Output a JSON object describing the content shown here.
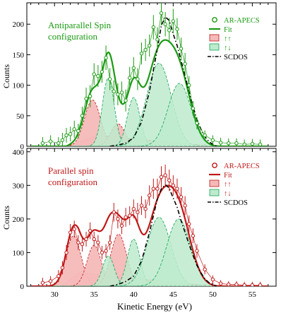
{
  "chart_data": [
    {
      "type": "line",
      "panel": "top",
      "title": "Antiparallel Spin configuration",
      "title_lines": [
        "Antiparallel Spin",
        "configuration"
      ],
      "ylabel": "Counts",
      "xlabel": "Kinetic Energy (eV)",
      "xlim": [
        26.5,
        58
      ],
      "ylim": [
        0,
        235
      ],
      "yticks": [
        0,
        50,
        100,
        150,
        200
      ],
      "accent_color": "#1a9a12",
      "legend": {
        "placement": "top-right",
        "entries": [
          {
            "label": "AR-APECS",
            "kind": "open-circle"
          },
          {
            "label": "Fit",
            "kind": "line"
          },
          {
            "label": "↑↑",
            "kind": "fill-red"
          },
          {
            "label": "↑↓",
            "kind": "fill-green"
          },
          {
            "label": "SCDOS",
            "kind": "dashdot"
          }
        ]
      },
      "series": [
        {
          "name": "AR-APECS",
          "role": "data",
          "x": [
            28.5,
            29.5,
            30.5,
            31,
            31.5,
            32,
            32.5,
            33,
            33.5,
            34,
            34.5,
            35,
            35.5,
            36,
            36.5,
            37,
            37.5,
            38,
            38.5,
            39,
            39.5,
            40,
            40.5,
            41,
            41.5,
            42,
            42.5,
            43,
            43.5,
            44,
            44.5,
            45,
            45.5,
            46,
            46.5,
            47,
            47.5,
            48,
            49,
            50,
            51,
            52,
            53,
            54,
            55,
            56
          ],
          "y": [
            5,
            8,
            5,
            10,
            18,
            20,
            28,
            25,
            50,
            78,
            82,
            118,
            115,
            122,
            145,
            110,
            90,
            85,
            88,
            75,
            112,
            128,
            110,
            152,
            158,
            165,
            195,
            175,
            218,
            200,
            190,
            205,
            192,
            160,
            135,
            100,
            62,
            38,
            18,
            10,
            6,
            5,
            5,
            3,
            4,
            3
          ],
          "err": [
            10,
            10,
            10,
            12,
            12,
            12,
            14,
            12,
            15,
            18,
            18,
            18,
            18,
            18,
            20,
            18,
            18,
            18,
            18,
            18,
            18,
            18,
            18,
            18,
            18,
            18,
            20,
            20,
            20,
            20,
            20,
            20,
            18,
            18,
            18,
            15,
            12,
            10,
            8,
            8,
            8,
            8,
            8,
            8,
            8,
            8
          ]
        },
        {
          "name": "Fit",
          "role": "fit",
          "x": [],
          "y": []
        },
        {
          "name": "↑↑",
          "role": "component-red",
          "peaks": [
            {
              "center": 34.8,
              "height": 76,
              "sigma": 1.0
            },
            {
              "center": 38.0,
              "height": 37,
              "sigma": 0.9
            }
          ],
          "tail": {
            "start": 31.5,
            "peak_at": 35.5,
            "level": 18,
            "end": 50
          }
        },
        {
          "name": "↑↓",
          "role": "component-green",
          "peaks": [
            {
              "center": 36.8,
              "height": 112,
              "sigma": 0.75
            },
            {
              "center": 40.0,
              "height": 80,
              "sigma": 0.8
            },
            {
              "center": 43.2,
              "height": 136,
              "sigma": 1.55
            },
            {
              "center": 45.8,
              "height": 103,
              "sigma": 1.45
            }
          ]
        },
        {
          "name": "SCDOS",
          "role": "scdos",
          "x": [
            37,
            38,
            39,
            40,
            41,
            42,
            43,
            43.5,
            44,
            44.5,
            45,
            45.5,
            46,
            46.5,
            47,
            47.5,
            48,
            48.5,
            49,
            49.5,
            50,
            50.5
          ],
          "y": [
            0,
            2,
            5,
            14,
            40,
            90,
            160,
            198,
            212,
            206,
            184,
            165,
            140,
            115,
            90,
            65,
            44,
            28,
            16,
            8,
            3,
            0
          ]
        }
      ]
    },
    {
      "type": "line",
      "panel": "bottom",
      "title": "Parallel spin configuration",
      "title_lines": [
        "Parallel spin",
        "configuration"
      ],
      "ylabel": "Counts",
      "xlabel": "Kinetic Energy (eV)",
      "xlim": [
        26.5,
        58
      ],
      "ylim": [
        0,
        410
      ],
      "yticks": [
        0,
        100,
        200,
        300,
        400
      ],
      "xticks": [
        30,
        35,
        40,
        45,
        50,
        55
      ],
      "accent_color": "#c01818",
      "legend": {
        "placement": "top-right",
        "entries": [
          {
            "label": "AR-APECS",
            "kind": "open-circle"
          },
          {
            "label": "Fit",
            "kind": "line"
          },
          {
            "label": "↑↑",
            "kind": "fill-red"
          },
          {
            "label": "↑↓",
            "kind": "fill-green"
          },
          {
            "label": "SCDOS",
            "kind": "dashdot"
          }
        ]
      },
      "series": [
        {
          "name": "AR-APECS",
          "role": "data",
          "x": [
            28.5,
            29.5,
            30.5,
            31,
            31.5,
            32,
            32.5,
            33,
            33.5,
            34,
            34.5,
            35,
            35.5,
            36,
            36.5,
            37,
            37.5,
            38,
            38.5,
            39,
            39.5,
            40,
            40.5,
            41,
            41.5,
            42,
            42.5,
            43,
            43.5,
            44,
            44.5,
            45,
            45.5,
            46,
            46.5,
            47,
            47.5,
            48,
            49,
            50,
            51,
            52,
            53,
            54,
            55,
            56
          ],
          "y": [
            10,
            15,
            30,
            55,
            100,
            160,
            170,
            130,
            125,
            140,
            165,
            140,
            130,
            100,
            105,
            130,
            220,
            200,
            180,
            205,
            210,
            230,
            220,
            240,
            230,
            270,
            290,
            290,
            325,
            330,
            315,
            300,
            290,
            265,
            240,
            185,
            150,
            105,
            50,
            20,
            8,
            5,
            5,
            3,
            3,
            3
          ],
          "err": [
            15,
            15,
            18,
            20,
            22,
            25,
            25,
            22,
            22,
            22,
            25,
            22,
            22,
            20,
            20,
            22,
            28,
            28,
            25,
            28,
            28,
            28,
            28,
            28,
            28,
            30,
            30,
            30,
            32,
            32,
            32,
            30,
            30,
            30,
            28,
            25,
            22,
            20,
            15,
            12,
            10,
            10,
            10,
            10,
            10,
            10
          ]
        },
        {
          "name": "Fit",
          "role": "fit",
          "x": [],
          "y": []
        },
        {
          "name": "↑↑",
          "role": "component-red",
          "peaks": [
            {
              "center": 32.4,
              "height": 150,
              "sigma": 0.95
            },
            {
              "center": 35.0,
              "height": 122,
              "sigma": 0.9
            },
            {
              "center": 38.1,
              "height": 155,
              "sigma": 1.0
            }
          ],
          "tail": {
            "start": 31.0,
            "peak_at": 33.0,
            "level": 40,
            "end": 50
          }
        },
        {
          "name": "↑↓",
          "role": "component-green",
          "peaks": [
            {
              "center": 36.8,
              "height": 90,
              "sigma": 0.75
            },
            {
              "center": 40.0,
              "height": 140,
              "sigma": 0.8
            },
            {
              "center": 43.2,
              "height": 205,
              "sigma": 1.5
            },
            {
              "center": 45.7,
              "height": 200,
              "sigma": 1.5
            }
          ]
        },
        {
          "name": "SCDOS",
          "role": "scdos",
          "x": [
            37,
            38,
            39,
            40,
            41,
            42,
            43,
            43.5,
            44,
            44.5,
            45,
            45.5,
            46,
            46.5,
            47,
            47.5,
            48,
            48.5,
            49,
            49.5,
            50,
            50.5
          ],
          "y": [
            0,
            5,
            14,
            30,
            75,
            160,
            260,
            290,
            302,
            292,
            262,
            235,
            195,
            160,
            125,
            92,
            62,
            40,
            22,
            11,
            4,
            0
          ]
        }
      ]
    }
  ],
  "axes": {
    "ylabel": "Counts",
    "xlabel": "Kinetic Energy (eV)"
  }
}
